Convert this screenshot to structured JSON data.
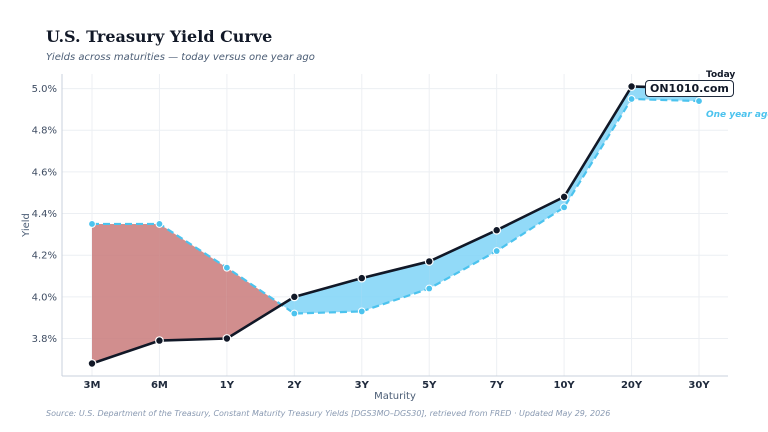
{
  "title": "U.S. Treasury Yield Curve",
  "subtitle": "Yields across maturities — today versus one year ago",
  "source": "Source: U.S. Department of the Treasury, Constant Maturity Treasury Yields [DGS3MO–DGS30], retrieved from FRED · Updated May 29, 2026",
  "watermark": "ON1010.com",
  "colors": {
    "today": "#111827",
    "prior": "#4cc3ee",
    "inverted_fill": "#c97a7a",
    "normal_fill": "#7fd4f7",
    "grid": "#eceff3"
  },
  "chart_data": {
    "type": "line",
    "title": "U.S. Treasury Yield Curve",
    "subtitle": "Yields across maturities — today versus one year ago",
    "xlabel": "Maturity",
    "ylabel": "Yield",
    "categories": [
      "3M",
      "6M",
      "1Y",
      "2Y",
      "3Y",
      "5Y",
      "7Y",
      "10Y",
      "20Y",
      "30Y"
    ],
    "yticks": [
      "3.8%",
      "4.0%",
      "4.2%",
      "4.4%",
      "4.6%",
      "4.8%",
      "5.0%"
    ],
    "ytick_values": [
      3.8,
      4.0,
      4.2,
      4.4,
      4.6,
      4.8,
      5.0
    ],
    "ylim": [
      3.62,
      5.07
    ],
    "grid": true,
    "series": [
      {
        "name": "Today",
        "style": "solid",
        "values": [
          3.68,
          3.79,
          3.8,
          4.0,
          4.09,
          4.17,
          4.32,
          4.48,
          5.01,
          5.0
        ]
      },
      {
        "name": "One year ago",
        "style": "dashed",
        "values": [
          4.35,
          4.35,
          4.14,
          3.92,
          3.93,
          4.04,
          4.22,
          4.43,
          4.95,
          4.94
        ]
      }
    ]
  }
}
